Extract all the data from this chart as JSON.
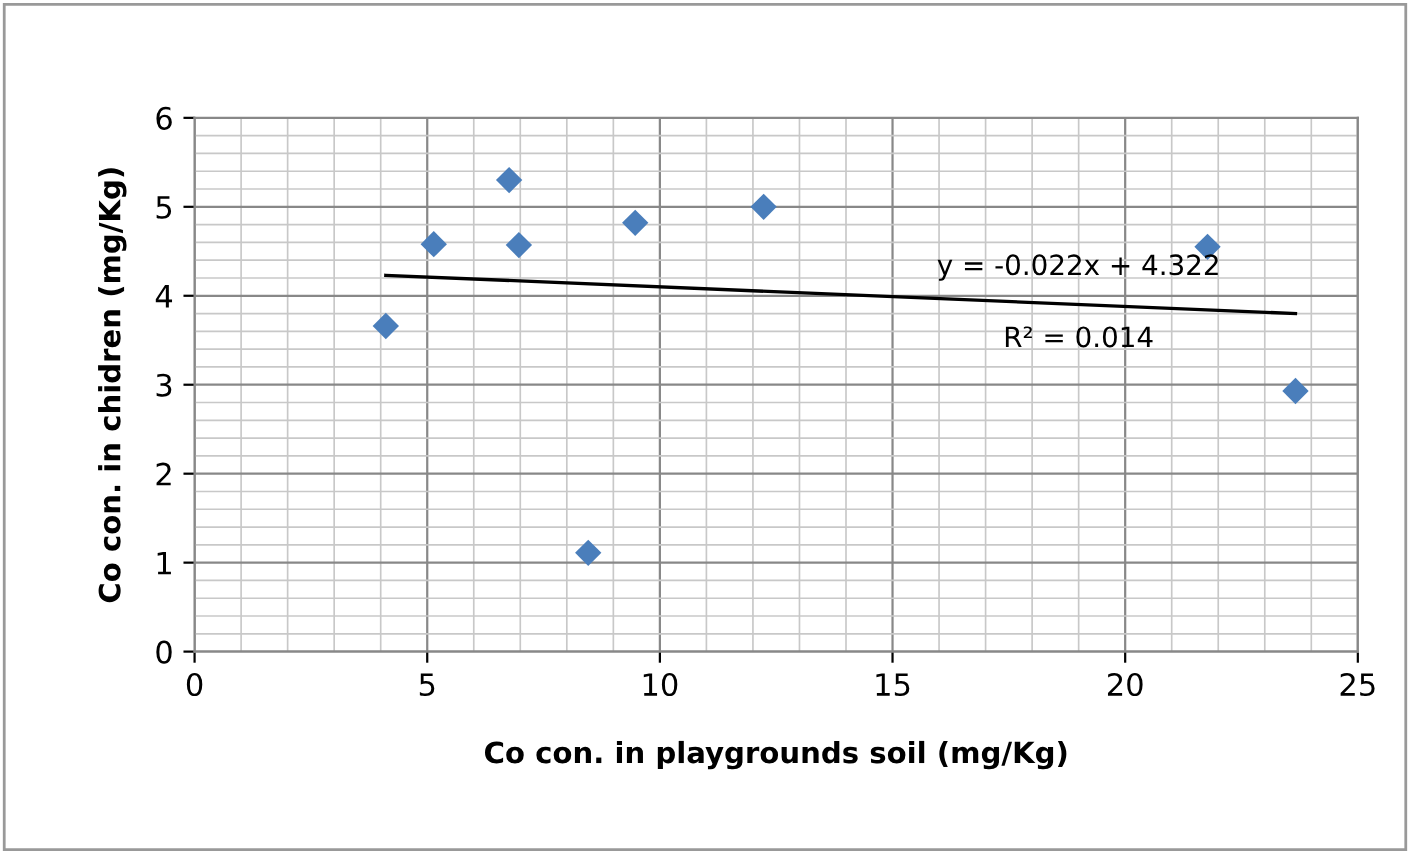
{
  "chart_data": {
    "type": "scatter",
    "xlabel": "Co con. in playgrounds soil (mg/Kg)",
    "ylabel": "Co con. in chidren (mg/Kg)",
    "x": [
      4.11,
      5.14,
      6.76,
      6.97,
      8.46,
      9.47,
      12.23,
      21.77,
      23.66
    ],
    "series": [
      {
        "type": "scatter",
        "color": "#4a7ebb",
        "marker": "diamond",
        "values": [
          3.66,
          4.58,
          5.3,
          4.57,
          1.11,
          4.82,
          5.0,
          4.55,
          2.93
        ]
      },
      {
        "type": "line",
        "color": "#000000",
        "marker": "none",
        "line_style": "solid",
        "x": [
          4.11,
          23.66
        ],
        "values": [
          4.23,
          3.8
        ]
      }
    ],
    "annotations": [
      "y = -0.022x + 4.322",
      "R² = 0.014"
    ],
    "xlim": [
      0,
      25
    ],
    "ylim": [
      0,
      6
    ],
    "xticks": [
      0,
      5,
      10,
      15,
      20,
      25
    ],
    "yticks": [
      0,
      1,
      2,
      3,
      4,
      5,
      6
    ],
    "grid": true,
    "legend": false
  }
}
